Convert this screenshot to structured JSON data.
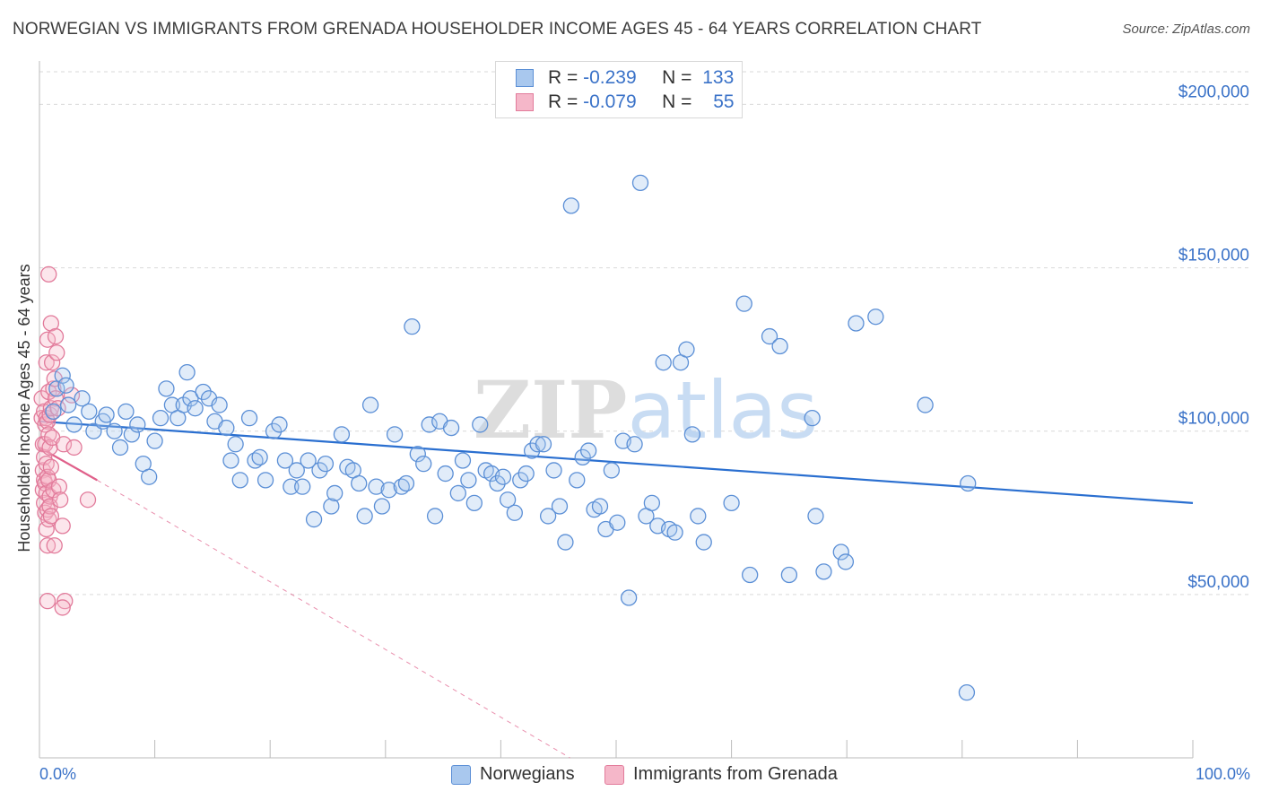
{
  "title": "NORWEGIAN VS IMMIGRANTS FROM GRENADA HOUSEHOLDER INCOME AGES 45 - 64 YEARS CORRELATION CHART",
  "source": "Source: ZipAtlas.com",
  "watermark": "ZIPatlas",
  "colors": {
    "blue_fill": "#a9c8ee",
    "blue_stroke": "#5b8fd6",
    "blue_line": "#2a6fd0",
    "pink_fill": "#f5b7c9",
    "pink_stroke": "#e27b9b",
    "pink_line": "#e0608a",
    "grid": "#d9d9d9",
    "tick_label": "#3a72c8"
  },
  "legend": {
    "rows": [
      {
        "r_label": "R =",
        "r_value": "-0.239",
        "n_label": "N =",
        "n_value": "133"
      },
      {
        "r_label": "R =",
        "r_value": "-0.079",
        "n_label": "N =",
        "n_value": "55"
      }
    ]
  },
  "bottom_legend": {
    "series1": "Norwegians",
    "series2": "Immigrants from Grenada"
  },
  "chart_data": {
    "type": "scatter",
    "title": "NORWEGIAN VS IMMIGRANTS FROM GRENADA HOUSEHOLDER INCOME AGES 45 - 64 YEARS CORRELATION CHART",
    "xlabel": "",
    "ylabel": "Householder Income Ages 45 - 64 years",
    "xlim": [
      0,
      100
    ],
    "ylim": [
      0,
      210000
    ],
    "x_tick_labels": {
      "min": "0.0%",
      "max": "100.0%"
    },
    "y_ticks": [
      {
        "value": 50000,
        "label": "$50,000"
      },
      {
        "value": 100000,
        "label": "$100,000"
      },
      {
        "value": 150000,
        "label": "$150,000"
      },
      {
        "value": 200000,
        "label": "$200,000"
      }
    ],
    "series": [
      {
        "name": "Norwegians",
        "r": -0.239,
        "n": 133,
        "trend": {
          "x": [
            0,
            100
          ],
          "y": [
            103000,
            78000
          ],
          "style": "solid"
        },
        "points": [
          [
            1.2,
            106000
          ],
          [
            1.5,
            113000
          ],
          [
            2.0,
            117000
          ],
          [
            2.3,
            114000
          ],
          [
            2.5,
            108000
          ],
          [
            3.0,
            102000
          ],
          [
            3.7,
            110000
          ],
          [
            4.3,
            106000
          ],
          [
            4.7,
            100000
          ],
          [
            5.5,
            103000
          ],
          [
            5.8,
            105000
          ],
          [
            6.5,
            100000
          ],
          [
            7.0,
            95000
          ],
          [
            7.5,
            106000
          ],
          [
            8.0,
            99000
          ],
          [
            8.5,
            102000
          ],
          [
            9.0,
            90000
          ],
          [
            9.5,
            86000
          ],
          [
            10.0,
            97000
          ],
          [
            10.5,
            104000
          ],
          [
            11.0,
            113000
          ],
          [
            11.5,
            108000
          ],
          [
            12.0,
            104000
          ],
          [
            12.5,
            108000
          ],
          [
            12.8,
            118000
          ],
          [
            13.1,
            110000
          ],
          [
            13.5,
            107000
          ],
          [
            14.2,
            112000
          ],
          [
            14.7,
            110000
          ],
          [
            15.2,
            103000
          ],
          [
            15.6,
            108000
          ],
          [
            16.2,
            101000
          ],
          [
            16.6,
            91000
          ],
          [
            17.0,
            96000
          ],
          [
            17.4,
            85000
          ],
          [
            18.2,
            104000
          ],
          [
            18.7,
            91000
          ],
          [
            19.1,
            92000
          ],
          [
            19.6,
            85000
          ],
          [
            20.3,
            100000
          ],
          [
            20.8,
            102000
          ],
          [
            21.3,
            91000
          ],
          [
            21.8,
            83000
          ],
          [
            22.3,
            88000
          ],
          [
            22.8,
            83000
          ],
          [
            23.3,
            91000
          ],
          [
            23.8,
            73000
          ],
          [
            24.3,
            88000
          ],
          [
            24.8,
            90000
          ],
          [
            25.3,
            77000
          ],
          [
            25.6,
            81000
          ],
          [
            26.2,
            99000
          ],
          [
            26.7,
            89000
          ],
          [
            27.2,
            88000
          ],
          [
            27.7,
            84000
          ],
          [
            28.2,
            74000
          ],
          [
            28.7,
            108000
          ],
          [
            29.2,
            83000
          ],
          [
            29.7,
            77000
          ],
          [
            30.3,
            82000
          ],
          [
            30.8,
            99000
          ],
          [
            31.4,
            83000
          ],
          [
            31.8,
            84000
          ],
          [
            32.3,
            132000
          ],
          [
            32.8,
            93000
          ],
          [
            33.3,
            90000
          ],
          [
            33.8,
            102000
          ],
          [
            34.3,
            74000
          ],
          [
            34.7,
            103000
          ],
          [
            35.2,
            87000
          ],
          [
            35.7,
            101000
          ],
          [
            36.3,
            81000
          ],
          [
            36.7,
            91000
          ],
          [
            37.2,
            85000
          ],
          [
            37.7,
            78000
          ],
          [
            38.2,
            102000
          ],
          [
            38.7,
            88000
          ],
          [
            39.2,
            87000
          ],
          [
            39.7,
            84000
          ],
          [
            40.2,
            86000
          ],
          [
            40.6,
            79000
          ],
          [
            41.2,
            75000
          ],
          [
            41.7,
            85000
          ],
          [
            42.2,
            87000
          ],
          [
            42.7,
            94000
          ],
          [
            43.2,
            96000
          ],
          [
            43.7,
            96000
          ],
          [
            44.1,
            74000
          ],
          [
            44.6,
            88000
          ],
          [
            45.1,
            77000
          ],
          [
            45.6,
            66000
          ],
          [
            46.1,
            169000
          ],
          [
            46.6,
            85000
          ],
          [
            47.1,
            92000
          ],
          [
            47.6,
            94000
          ],
          [
            48.1,
            76000
          ],
          [
            48.6,
            77000
          ],
          [
            49.1,
            70000
          ],
          [
            49.6,
            88000
          ],
          [
            50.1,
            72000
          ],
          [
            50.6,
            97000
          ],
          [
            51.1,
            49000
          ],
          [
            51.6,
            96000
          ],
          [
            52.1,
            176000
          ],
          [
            52.6,
            74000
          ],
          [
            53.1,
            78000
          ],
          [
            53.6,
            71000
          ],
          [
            54.1,
            121000
          ],
          [
            54.6,
            70000
          ],
          [
            55.1,
            69000
          ],
          [
            55.6,
            121000
          ],
          [
            56.1,
            125000
          ],
          [
            56.6,
            99000
          ],
          [
            57.1,
            74000
          ],
          [
            57.6,
            66000
          ],
          [
            60.0,
            78000
          ],
          [
            61.1,
            139000
          ],
          [
            61.6,
            56000
          ],
          [
            63.3,
            129000
          ],
          [
            64.2,
            126000
          ],
          [
            65.0,
            56000
          ],
          [
            67.0,
            104000
          ],
          [
            67.3,
            74000
          ],
          [
            68.0,
            57000
          ],
          [
            69.5,
            63000
          ],
          [
            69.9,
            60000
          ],
          [
            70.8,
            133000
          ],
          [
            72.5,
            135000
          ],
          [
            76.8,
            108000
          ],
          [
            80.5,
            84000
          ],
          [
            80.4,
            20000
          ]
        ]
      },
      {
        "name": "Immigrants from Grenada",
        "r": -0.079,
        "n": 55,
        "trend": {
          "x": [
            0,
            5
          ],
          "y": [
            95000,
            85000
          ],
          "style": "solid",
          "extended": {
            "x": [
              5,
              46
            ],
            "y": [
              85000,
              0
            ],
            "style": "dashed"
          }
        },
        "points": [
          [
            0.2,
            104000
          ],
          [
            0.2,
            110000
          ],
          [
            0.3,
            96000
          ],
          [
            0.3,
            88000
          ],
          [
            0.3,
            82000
          ],
          [
            0.4,
            106000
          ],
          [
            0.4,
            92000
          ],
          [
            0.4,
            85000
          ],
          [
            0.4,
            78000
          ],
          [
            0.5,
            102000
          ],
          [
            0.5,
            96000
          ],
          [
            0.5,
            84000
          ],
          [
            0.5,
            75000
          ],
          [
            0.6,
            121000
          ],
          [
            0.6,
            104000
          ],
          [
            0.6,
            90000
          ],
          [
            0.6,
            81000
          ],
          [
            0.6,
            70000
          ],
          [
            0.7,
            128000
          ],
          [
            0.7,
            103000
          ],
          [
            0.7,
            86000
          ],
          [
            0.7,
            76000
          ],
          [
            0.7,
            65000
          ],
          [
            0.8,
            148000
          ],
          [
            0.8,
            112000
          ],
          [
            0.8,
            99000
          ],
          [
            0.8,
            85000
          ],
          [
            0.8,
            73000
          ],
          [
            0.9,
            105000
          ],
          [
            0.9,
            95000
          ],
          [
            0.9,
            80000
          ],
          [
            0.9,
            77000
          ],
          [
            1.0,
            133000
          ],
          [
            1.0,
            107000
          ],
          [
            1.0,
            89000
          ],
          [
            1.0,
            74000
          ],
          [
            1.1,
            121000
          ],
          [
            1.1,
            98000
          ],
          [
            1.2,
            113000
          ],
          [
            1.2,
            82000
          ],
          [
            1.3,
            116000
          ],
          [
            1.3,
            65000
          ],
          [
            1.4,
            129000
          ],
          [
            1.4,
            110000
          ],
          [
            1.5,
            124000
          ],
          [
            1.6,
            107000
          ],
          [
            1.7,
            83000
          ],
          [
            1.8,
            79000
          ],
          [
            2.0,
            71000
          ],
          [
            2.1,
            96000
          ],
          [
            2.2,
            48000
          ],
          [
            0.7,
            48000
          ],
          [
            2.0,
            46000
          ],
          [
            2.8,
            111000
          ],
          [
            3.0,
            95000
          ],
          [
            4.2,
            79000
          ]
        ]
      }
    ]
  }
}
